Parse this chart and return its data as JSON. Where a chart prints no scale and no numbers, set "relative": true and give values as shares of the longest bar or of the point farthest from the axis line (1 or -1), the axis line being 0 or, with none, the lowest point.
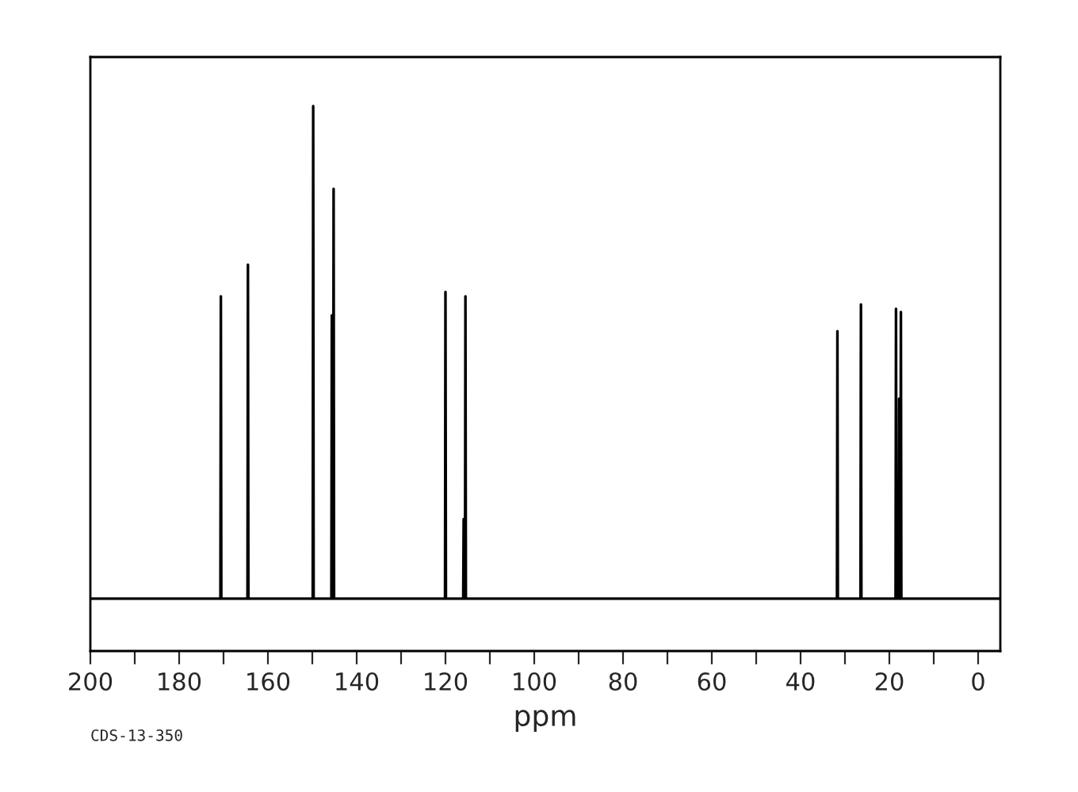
{
  "chart_data": {
    "type": "line",
    "relative": true,
    "xlabel": "ppm",
    "annotations": [
      "CDS-13-350"
    ],
    "xlim": [
      200,
      -5
    ],
    "xticks": [
      200,
      {
        "value": 190,
        "label": null
      },
      180,
      {
        "value": 170,
        "label": null
      },
      160,
      {
        "value": 150,
        "label": null
      },
      140,
      {
        "value": 130,
        "label": null
      },
      120,
      {
        "value": 110,
        "label": null
      },
      100,
      {
        "value": 90,
        "label": null
      },
      80,
      {
        "value": 70,
        "label": null
      },
      60,
      {
        "value": 50,
        "label": null
      },
      40,
      {
        "value": 30,
        "label": null
      },
      20,
      {
        "value": 10,
        "label": null
      },
      0
    ],
    "tick_labels": "x",
    "grid": false,
    "legend": false,
    "marker": "none",
    "line_style": "solid",
    "series": [
      {
        "color": "#000000",
        "x": [
          200,
          170.7,
          170.6,
          170.5,
          164.6,
          164.5,
          164.4,
          149.9,
          149.8,
          149.7,
          145.7,
          145.6,
          145.4,
          145.3,
          145.2,
          145.1,
          120.1,
          120.0,
          119.9,
          116.0,
          115.9,
          115.7,
          115.6,
          115.5,
          115.4,
          31.8,
          31.7,
          31.6,
          26.5,
          26.4,
          26.3,
          18.6,
          18.5,
          18.4,
          17.9,
          17.8,
          17.7,
          17.5,
          17.4,
          17.3,
          -5
        ],
        "values": [
          0.096,
          0.096,
          0.651,
          0.096,
          0.096,
          0.709,
          0.096,
          0.096,
          1,
          0.096,
          0.096,
          0.616,
          0.096,
          0.096,
          0.848,
          0.096,
          0.096,
          0.659,
          0.096,
          0.096,
          0.242,
          0.096,
          0.096,
          0.651,
          0.096,
          0.096,
          0.587,
          0.096,
          0.096,
          0.636,
          0.096,
          0.096,
          0.628,
          0.096,
          0.096,
          0.463,
          0.096,
          0.096,
          0.622,
          0.096,
          0.096
        ]
      }
    ]
  }
}
